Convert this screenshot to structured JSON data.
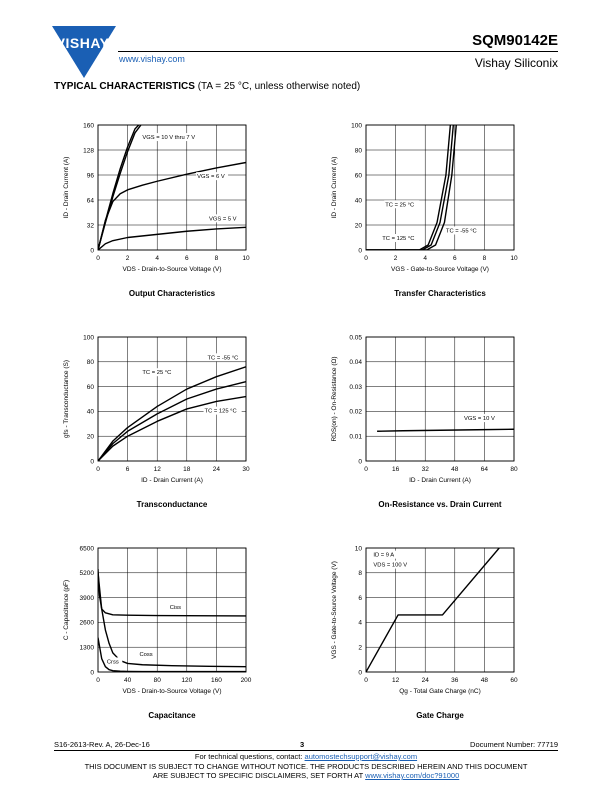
{
  "header": {
    "brand": "VISHAY.",
    "website": "www.vishay.com",
    "part_number": "SQM90142E",
    "company": "Vishay Siliconix",
    "brand_color": "#1a5fb4"
  },
  "section": {
    "title": "TYPICAL CHARACTERISTICS",
    "condition": "(TA = 25 °C, unless otherwise noted)"
  },
  "charts": [
    {
      "id": "output",
      "type": "line",
      "caption": "Output Characteristics",
      "xlabel": "VDS - Drain-to-Source Voltage (V)",
      "ylabel": "ID - Drain Current (A)",
      "xlim": [
        0,
        10
      ],
      "ylim": [
        0,
        160
      ],
      "xticks": [
        0,
        2,
        4,
        6,
        8,
        10
      ],
      "yticks": [
        0,
        32,
        64,
        96,
        128,
        160
      ],
      "xticklabels": [
        "0",
        "2",
        "4",
        "6",
        "8",
        "10"
      ],
      "yticklabels": [
        "0",
        "32",
        "64",
        "96",
        "128",
        "160"
      ],
      "grid": true,
      "series": [
        {
          "x": [
            0,
            0.5,
            1,
            1.5,
            2,
            2.5,
            2.9
          ],
          "y": [
            0,
            35,
            68,
            98,
            126,
            150,
            160
          ]
        },
        {
          "x": [
            0,
            0.5,
            1,
            1.5,
            2,
            2.5,
            2.75
          ],
          "y": [
            0,
            37,
            72,
            104,
            132,
            155,
            160
          ]
        },
        {
          "x": [
            0,
            0.5,
            1,
            1.5,
            2,
            3,
            4,
            6,
            8,
            10
          ],
          "y": [
            0,
            38,
            62,
            72,
            77,
            83,
            88,
            97,
            105,
            112
          ]
        },
        {
          "x": [
            0,
            0.5,
            1,
            2,
            4,
            6,
            8,
            10
          ],
          "y": [
            0,
            8,
            12,
            16,
            20,
            24,
            27,
            29
          ]
        }
      ],
      "annotations": [
        {
          "text": "VGS = 10 V thru 7 V",
          "x": 3.0,
          "y": 142
        },
        {
          "text": "VGS = 6 V",
          "x": 6.7,
          "y": 92
        },
        {
          "text": "VGS = 5 V",
          "x": 7.5,
          "y": 38
        }
      ]
    },
    {
      "id": "transfer",
      "type": "line",
      "caption": "Transfer Characteristics",
      "xlabel": "VGS - Gate-to-Source Voltage (V)",
      "ylabel": "ID - Drain Current (A)",
      "xlim": [
        0,
        10
      ],
      "ylim": [
        0,
        100
      ],
      "xticks": [
        0,
        2,
        4,
        6,
        8,
        10
      ],
      "yticks": [
        0,
        20,
        40,
        60,
        80,
        100
      ],
      "xticklabels": [
        "0",
        "2",
        "4",
        "6",
        "8",
        "10"
      ],
      "yticklabels": [
        "0",
        "20",
        "40",
        "60",
        "80",
        "100"
      ],
      "grid": true,
      "series": [
        {
          "x": [
            0,
            3.6,
            4.2,
            4.8,
            5.4,
            5.7
          ],
          "y": [
            0,
            0,
            4,
            22,
            60,
            100
          ]
        },
        {
          "x": [
            0,
            3.8,
            4.4,
            5.0,
            5.6,
            5.9
          ],
          "y": [
            0,
            0,
            4,
            22,
            60,
            100
          ]
        },
        {
          "x": [
            0,
            4.1,
            4.7,
            5.3,
            5.8,
            6.1
          ],
          "y": [
            0,
            0,
            4,
            22,
            60,
            100
          ]
        }
      ],
      "annotations": [
        {
          "text": "TC = 25 °C",
          "x": 1.3,
          "y": 35
        },
        {
          "text": "TC = 125 °C",
          "x": 1.1,
          "y": 8
        },
        {
          "text": "TC = -55 °C",
          "x": 5.4,
          "y": 14
        }
      ]
    },
    {
      "id": "transconductance",
      "type": "line",
      "caption": "Transconductance",
      "xlabel": "ID - Drain Current (A)",
      "ylabel": "gfs - Transconductance (S)",
      "xlim": [
        0,
        30
      ],
      "ylim": [
        0,
        100
      ],
      "xticks": [
        0,
        6,
        12,
        18,
        24,
        30
      ],
      "yticks": [
        0,
        20,
        40,
        60,
        80,
        100
      ],
      "xticklabels": [
        "0",
        "6",
        "12",
        "18",
        "24",
        "30"
      ],
      "yticklabels": [
        "0",
        "20",
        "40",
        "60",
        "80",
        "100"
      ],
      "grid": true,
      "series": [
        {
          "x": [
            0,
            3,
            6,
            12,
            18,
            24,
            30
          ],
          "y": [
            0,
            16,
            27,
            44,
            58,
            68,
            76
          ]
        },
        {
          "x": [
            0,
            3,
            6,
            12,
            18,
            24,
            30
          ],
          "y": [
            0,
            14,
            24,
            38,
            50,
            58,
            64
          ]
        },
        {
          "x": [
            0,
            3,
            6,
            12,
            18,
            24,
            30
          ],
          "y": [
            0,
            12,
            20,
            32,
            42,
            48,
            52
          ]
        }
      ],
      "annotations": [
        {
          "text": "TC = -55 °C",
          "x": 22.2,
          "y": 82
        },
        {
          "text": "TC = 25 °C",
          "x": 9.0,
          "y": 70
        },
        {
          "text": "TC = 125 °C",
          "x": 21.6,
          "y": 39
        }
      ]
    },
    {
      "id": "on-resistance",
      "type": "line",
      "caption": "On-Resistance vs. Drain Current",
      "xlabel": "ID - Drain Current (A)",
      "ylabel": "RDS(on) - On-Resistance (Ω)",
      "xlim": [
        0,
        80
      ],
      "ylim": [
        0,
        0.05
      ],
      "xticks": [
        0,
        16,
        32,
        48,
        64,
        80
      ],
      "yticks": [
        0,
        0.01,
        0.02,
        0.03,
        0.04,
        0.05
      ],
      "xticklabels": [
        "0",
        "16",
        "32",
        "48",
        "64",
        "80"
      ],
      "yticklabels": [
        "0",
        "0.01",
        "0.02",
        "0.03",
        "0.04",
        "0.05"
      ],
      "grid": true,
      "series": [
        {
          "x": [
            6,
            20,
            40,
            60,
            80
          ],
          "y": [
            0.012,
            0.0122,
            0.0124,
            0.0126,
            0.0128
          ]
        }
      ],
      "annotations": [
        {
          "text": "VGS = 10 V",
          "x": 53,
          "y": 0.0165
        }
      ]
    },
    {
      "id": "capacitance",
      "type": "line",
      "caption": "Capacitance",
      "xlabel": "VDS - Drain-to-Source Voltage (V)",
      "ylabel": "C - Capacitance (pF)",
      "xlim": [
        0,
        200
      ],
      "ylim": [
        0,
        6500
      ],
      "xticks": [
        0,
        40,
        80,
        120,
        160,
        200
      ],
      "yticks": [
        0,
        1300,
        2600,
        3900,
        5200,
        6500
      ],
      "xticklabels": [
        "0",
        "40",
        "80",
        "120",
        "160",
        "200"
      ],
      "yticklabels": [
        "0",
        "1300",
        "2600",
        "3900",
        "5200",
        "6500"
      ],
      "grid": true,
      "series": [
        {
          "x": [
            0,
            2,
            5,
            10,
            20,
            40,
            80,
            120,
            160,
            200
          ],
          "y": [
            5400,
            4000,
            3300,
            3100,
            3000,
            2980,
            2960,
            2950,
            2945,
            2940
          ]
        },
        {
          "x": [
            0,
            5,
            10,
            15,
            20,
            30,
            40,
            60,
            100,
            150,
            200
          ],
          "y": [
            5200,
            3300,
            2200,
            1500,
            1000,
            600,
            450,
            380,
            330,
            300,
            280
          ]
        },
        {
          "x": [
            0,
            5,
            10,
            15,
            20,
            30,
            40,
            60,
            100,
            200
          ],
          "y": [
            1800,
            700,
            280,
            120,
            70,
            40,
            30,
            25,
            22,
            20
          ]
        }
      ],
      "annotations": [
        {
          "text": "Ciss",
          "x": 97,
          "y": 3300
        },
        {
          "text": "Coss",
          "x": 56,
          "y": 850
        },
        {
          "text": "Crss",
          "x": 12,
          "y": 450
        }
      ]
    },
    {
      "id": "gate-charge",
      "type": "line",
      "caption": "Gate Charge",
      "xlabel": "Qg - Total Gate Charge (nC)",
      "ylabel": "VGS - Gate-to-Source Voltage (V)",
      "xlim": [
        0,
        60
      ],
      "ylim": [
        0,
        10
      ],
      "xticks": [
        0,
        12,
        24,
        36,
        48,
        60
      ],
      "yticks": [
        0,
        2,
        4,
        6,
        8,
        10
      ],
      "xticklabels": [
        "0",
        "12",
        "24",
        "36",
        "48",
        "60"
      ],
      "yticklabels": [
        "0",
        "2",
        "4",
        "6",
        "8",
        "10"
      ],
      "grid": true,
      "series": [
        {
          "x": [
            0,
            13,
            31,
            54
          ],
          "y": [
            0,
            4.6,
            4.6,
            10
          ]
        }
      ],
      "annotations": [
        {
          "text": "ID = 9 A",
          "x": 3,
          "y": 9.3
        },
        {
          "text": "VDS = 100 V",
          "x": 3,
          "y": 8.5
        }
      ]
    }
  ],
  "footer": {
    "revision": "S16-2613-Rev. A, 26-Dec-16",
    "page": "3",
    "doc_number": "Document Number: 77719",
    "contact_prefix": "For technical questions, contact: ",
    "contact_email": "automostechsupport@vishay.com",
    "notice_1": "THIS DOCUMENT IS SUBJECT TO CHANGE WITHOUT NOTICE. THE PRODUCTS DESCRIBED HEREIN AND THIS DOCUMENT",
    "notice_2_prefix": "ARE SUBJECT TO SPECIFIC DISCLAIMERS, SET FORTH AT ",
    "notice_2_link": "www.vishay.com/doc?91000"
  }
}
